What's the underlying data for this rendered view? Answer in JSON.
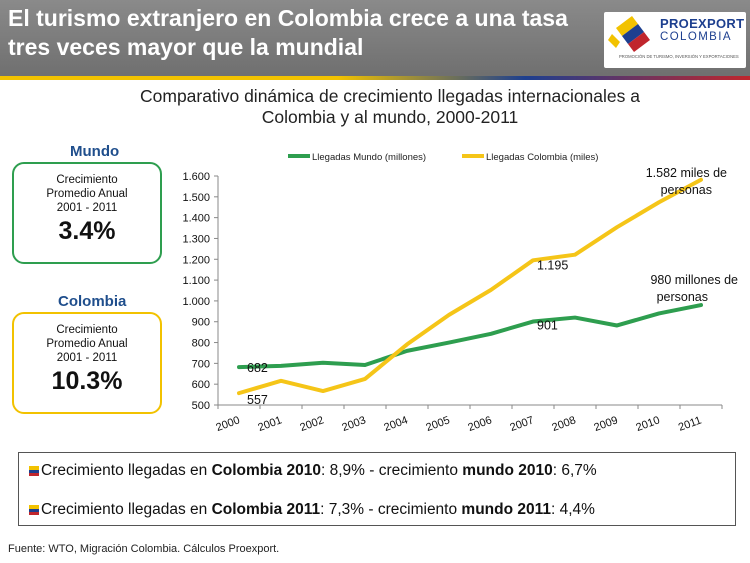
{
  "header": {
    "title_line1": "El turismo extranjero en Colombia crece a una tasa",
    "title_line2": "tres veces mayor que la mundial",
    "logo_name": "PROEXPORT",
    "logo_country": "COLOMBIA",
    "logo_tagline": "PROMOCIÓN DE TURISMO, INVERSIÓN Y EXPORTACIONES"
  },
  "boxes": {
    "mundo": {
      "title": "Mundo",
      "label_1": "Crecimiento",
      "label_2": "Promedio Anual",
      "label_3": "2001 - 2011",
      "value": "3.4%",
      "color": "#2e9e4f"
    },
    "colombia": {
      "title": "Colombia",
      "label_1": "Crecimiento",
      "label_2": "Promedio Anual",
      "label_3": "2001 - 2011",
      "value": "10.3%",
      "color": "#f2c200"
    }
  },
  "chart_data": {
    "type": "line",
    "title_line1": "Comparativo dinámica de crecimiento llegadas internacionales a",
    "title_line2": "Colombia y al mundo, 2000-2011",
    "categories": [
      "2000",
      "2001",
      "2002",
      "2003",
      "2004",
      "2005",
      "2006",
      "2007",
      "2008",
      "2009",
      "2010",
      "2011"
    ],
    "series": [
      {
        "name": "Llegadas Mundo (millones)",
        "color": "#2e9e4f",
        "values": [
          682,
          688,
          703,
          692,
          760,
          800,
          842,
          901,
          920,
          882,
          940,
          980
        ]
      },
      {
        "name": "Llegadas Colombia (miles)",
        "color": "#f5c518",
        "values": [
          557,
          616,
          567,
          625,
          791,
          933,
          1053,
          1195,
          1222,
          1354,
          1474,
          1582
        ]
      }
    ],
    "ylim": [
      500,
      1600
    ],
    "yticks": [
      "500",
      "600",
      "700",
      "800",
      "900",
      "1.000",
      "1.100",
      "1.200",
      "1.300",
      "1.400",
      "1.500",
      "1.600"
    ],
    "legend_position": "top",
    "grid": false,
    "data_labels": [
      "682",
      "557",
      "901",
      "1.195"
    ],
    "annotation_colombia_1": "1.582 miles de",
    "annotation_colombia_2": "personas",
    "annotation_mundo_1": "980 millones de",
    "annotation_mundo_2": "personas"
  },
  "notes": {
    "line1": {
      "prefix": "Crecimiento llegadas en ",
      "bold1": "Colombia 2010",
      "mid": ": 8,9% - crecimiento ",
      "bold2": "mundo 2010",
      "suffix": ": 6,7%"
    },
    "line2": {
      "prefix": "Crecimiento llegadas en ",
      "bold1": "Colombia 2011",
      "mid": ": 7,3% - crecimiento ",
      "bold2": "mundo 2011",
      "suffix": ": 4,4%"
    }
  },
  "source": "Fuente: WTO, Migración Colombia. Cálculos Proexport."
}
